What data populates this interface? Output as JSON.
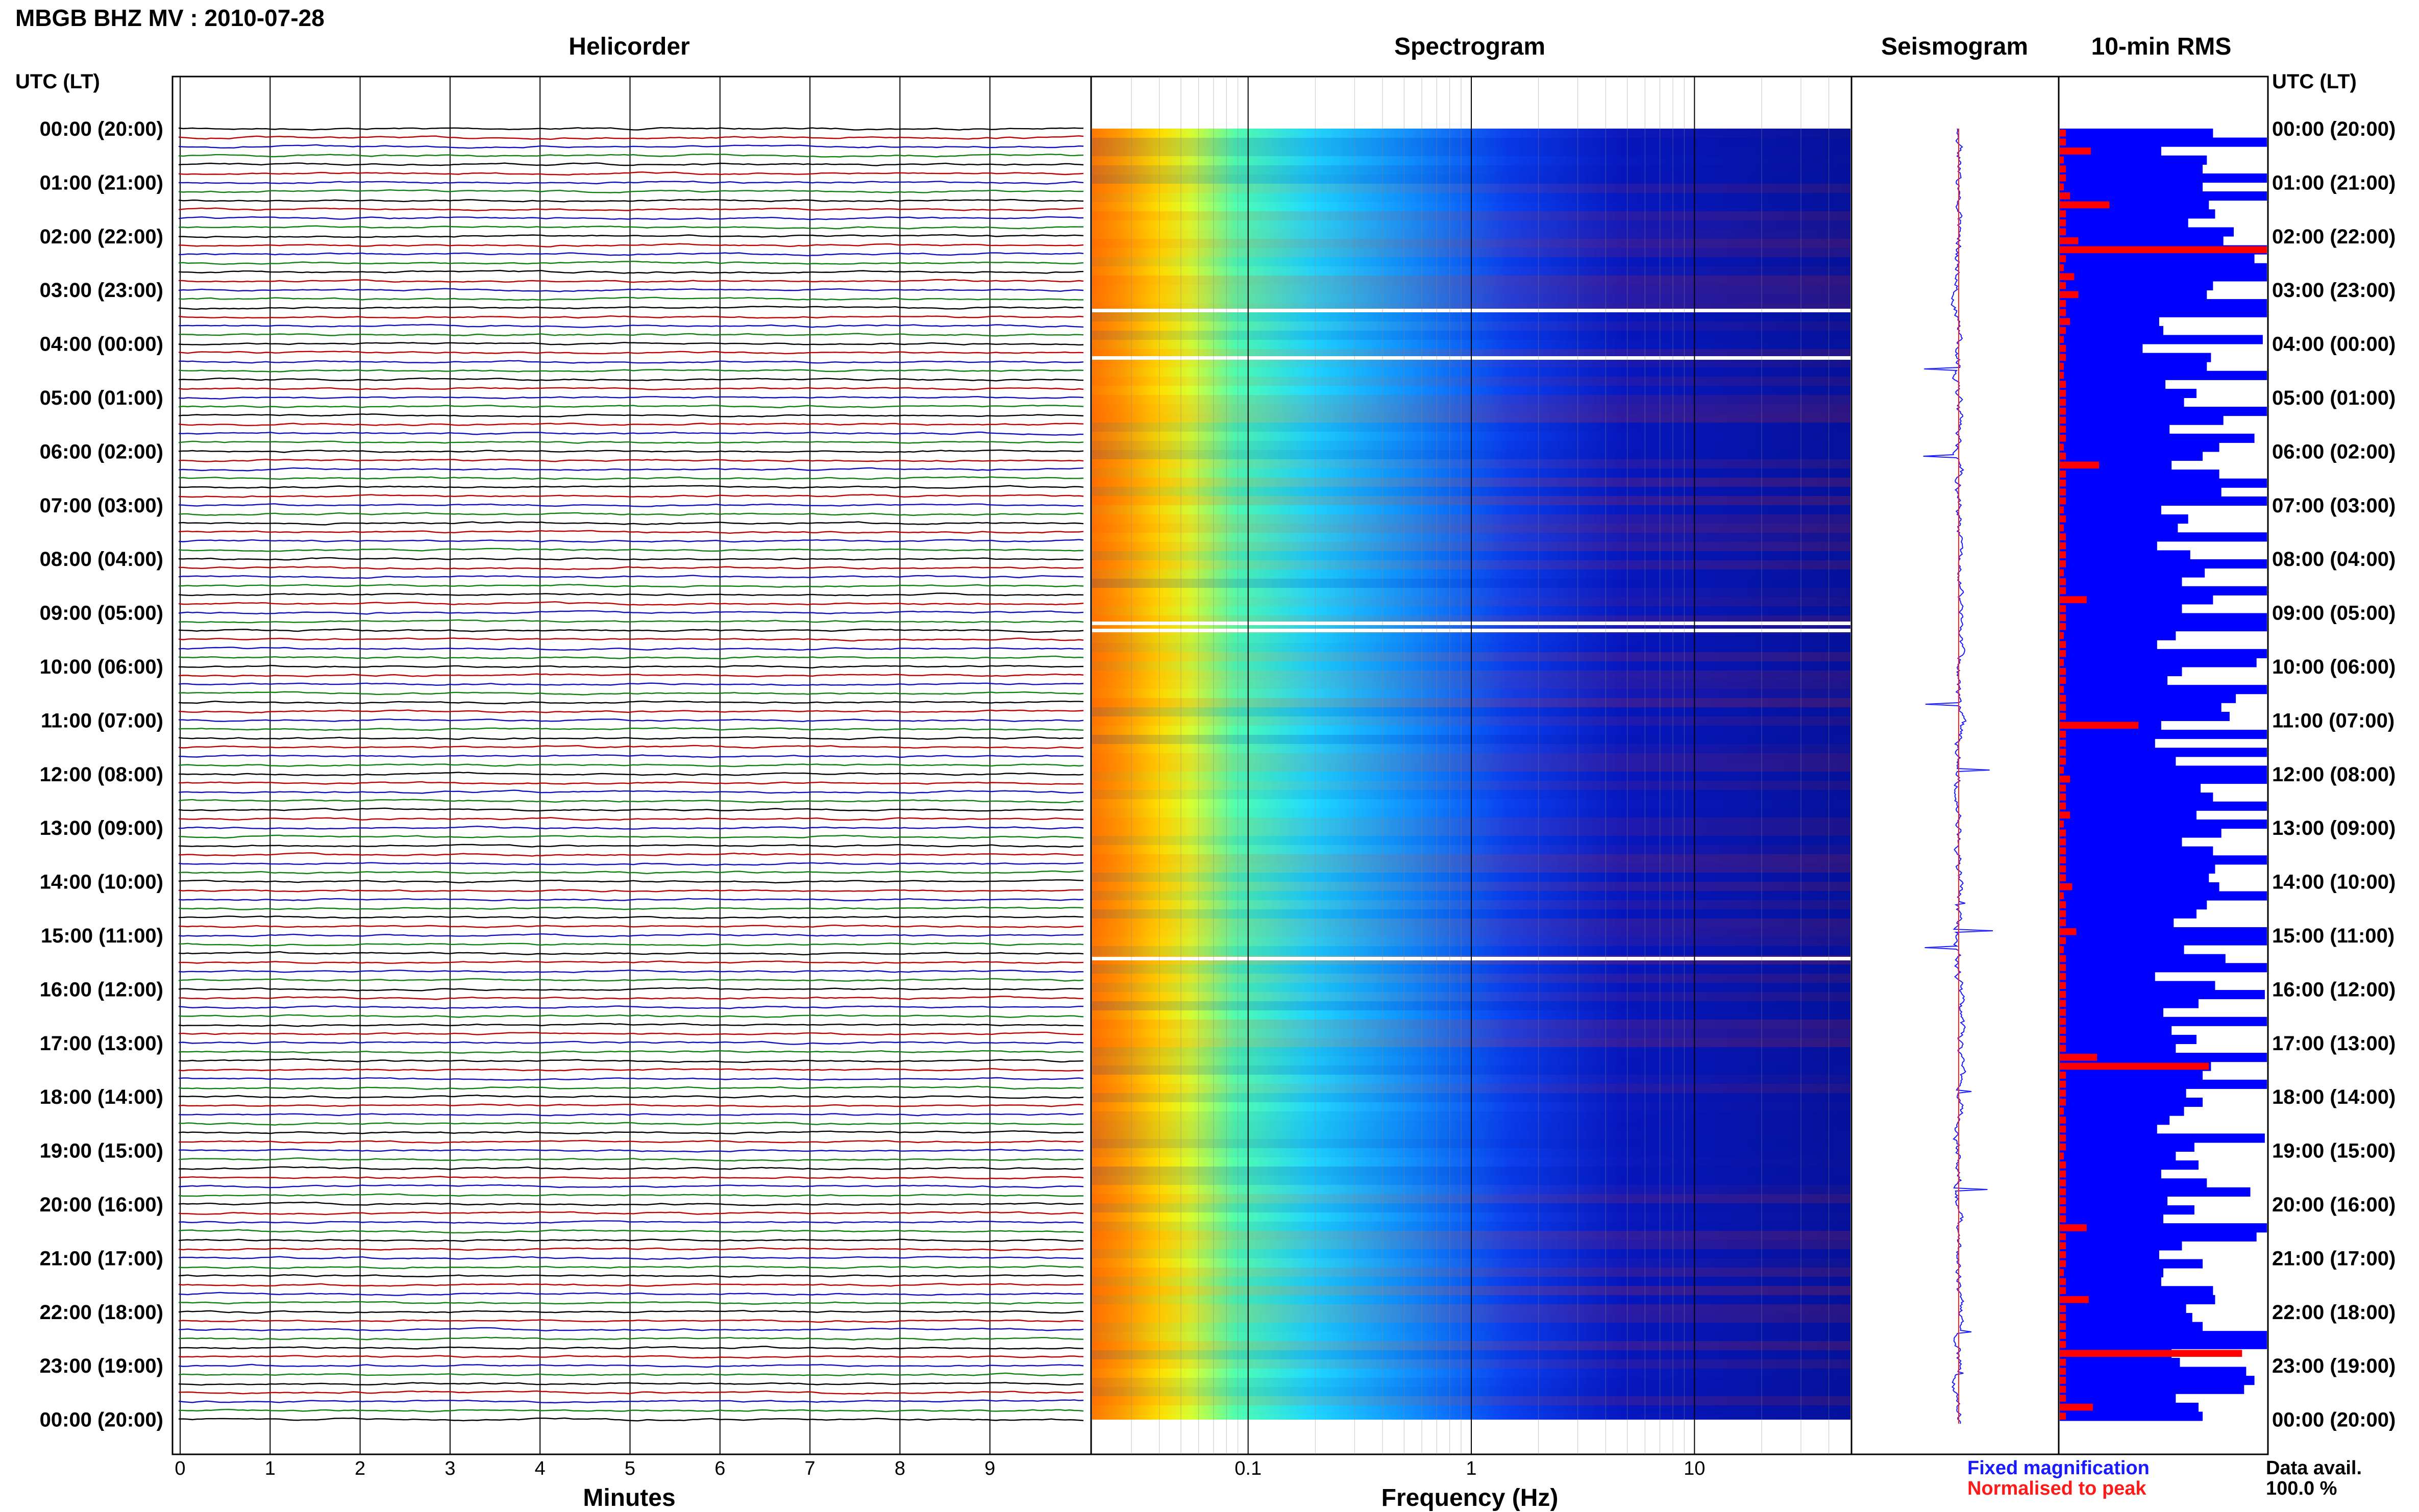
{
  "header": {
    "title": "MBGB BHZ MV : 2010-07-28",
    "utc_label_left": "UTC (LT)",
    "utc_label_right": "UTC (LT)"
  },
  "panels": {
    "helicorder": "Helicorder",
    "spectrogram": "Spectrogram",
    "seismogram": "Seismogram",
    "rms": "10-min RMS"
  },
  "time_labels": [
    "00:00 (20:00)",
    "01:00 (21:00)",
    "02:00 (22:00)",
    "03:00 (23:00)",
    "04:00 (00:00)",
    "05:00 (01:00)",
    "06:00 (02:00)",
    "07:00 (03:00)",
    "08:00 (04:00)",
    "09:00 (05:00)",
    "10:00 (06:00)",
    "11:00 (07:00)",
    "12:00 (08:00)",
    "13:00 (09:00)",
    "14:00 (10:00)",
    "15:00 (11:00)",
    "16:00 (12:00)",
    "17:00 (13:00)",
    "18:00 (14:00)",
    "19:00 (15:00)",
    "20:00 (16:00)",
    "21:00 (17:00)",
    "22:00 (18:00)",
    "23:00 (19:00)",
    "00:00 (20:00)"
  ],
  "footer": {
    "legend_fixed": "Fixed magnification",
    "legend_normalised": "Normalised to peak",
    "avail_label": "Data avail.",
    "avail_value": "100.0 %"
  },
  "colors": {
    "trace_cycle": [
      "#000000",
      "#c00000",
      "#1010c0",
      "#108010"
    ],
    "rms_fixed": "#0000ff",
    "rms_normalised": "#ff0000"
  },
  "chart_data": [
    {
      "type": "line",
      "title": "Helicorder",
      "xlabel": "Minutes",
      "x_ticks": [
        "0",
        "1",
        "2",
        "3",
        "4",
        "5",
        "6",
        "7",
        "8",
        "9"
      ],
      "xlim": [
        0,
        10
      ],
      "rows_per_hour": 6,
      "row_count": 144
    },
    {
      "type": "heatmap",
      "title": "Spectrogram",
      "xlabel": "Frequency (Hz)",
      "x_scale": "log",
      "x_ticks": [
        "0.1",
        "1",
        "10"
      ],
      "xlim": [
        0.02,
        50
      ],
      "colormap": "jet (blue low, red high)"
    },
    {
      "type": "line",
      "title": "Seismogram"
    },
    {
      "type": "bar",
      "title": "10-min RMS",
      "orientation": "horizontal",
      "series": [
        {
          "name": "Fixed magnification",
          "values": [
            0.74,
            1.0,
            0.49,
            0.71,
            0.69,
            1.0,
            0.69,
            1.0,
            0.72,
            0.75,
            0.62,
            0.84,
            0.79,
            1.0,
            0.94,
            1.0,
            1.0,
            0.74,
            0.71,
            1.0,
            1.0,
            0.48,
            0.5,
            0.98,
            0.4,
            0.73,
            0.71,
            1.0,
            0.51,
            0.66,
            0.6,
            1.0,
            0.79,
            0.53,
            0.94,
            0.77,
            0.69,
            0.54,
            0.77,
            1.0,
            0.78,
            1.0,
            0.49,
            0.62,
            0.57,
            1.0,
            0.47,
            0.63,
            1.0,
            0.7,
            0.59,
            1.0,
            0.74,
            0.59,
            1.0,
            1.0,
            0.56,
            0.47,
            1.0,
            0.95,
            0.59,
            0.52,
            1.0,
            0.85,
            0.78,
            0.82,
            0.49,
            1.0,
            0.46,
            1.0,
            0.56,
            1.0,
            1.0,
            0.68,
            0.74,
            1.0,
            0.66,
            1.0,
            0.78,
            0.59,
            0.74,
            1.0,
            0.75,
            0.72,
            0.77,
            1.0,
            0.71,
            0.66,
            0.55,
            1.0,
            1.0,
            0.6,
            0.8,
            1.0,
            0.46,
            0.75,
            0.99,
            0.67,
            0.5,
            1.0,
            0.54,
            0.66,
            0.56,
            1.0,
            0.73,
            0.69,
            1.0,
            0.61,
            0.69,
            0.6,
            0.53,
            0.47,
            0.99,
            0.65,
            0.56,
            0.67,
            0.49,
            0.71,
            0.92,
            0.52,
            0.65,
            0.5,
            1.0,
            0.95,
            0.59,
            0.48,
            0.69,
            0.5,
            0.49,
            0.74,
            0.75,
            0.61,
            0.64,
            0.69,
            1.0,
            1.0,
            0.54,
            0.58,
            0.9,
            0.94,
            0.89,
            0.56,
            0.67,
            0.69
          ]
        },
        {
          "name": "Normalised to peak",
          "values": [
            0.03,
            0.03,
            0.15,
            0.02,
            0.03,
            0.03,
            0.02,
            0.05,
            0.24,
            0.03,
            0.03,
            0.03,
            0.09,
            1.0,
            0.03,
            0.02,
            0.07,
            0.03,
            0.09,
            0.03,
            0.03,
            0.05,
            0.03,
            0.02,
            0.03,
            0.03,
            0.02,
            0.02,
            0.03,
            0.03,
            0.03,
            0.03,
            0.03,
            0.03,
            0.03,
            0.02,
            0.03,
            0.19,
            0.03,
            0.03,
            0.03,
            0.03,
            0.02,
            0.03,
            0.02,
            0.03,
            0.03,
            0.03,
            0.03,
            0.02,
            0.03,
            0.03,
            0.13,
            0.03,
            0.03,
            0.03,
            0.02,
            0.03,
            0.03,
            0.02,
            0.03,
            0.03,
            0.02,
            0.03,
            0.03,
            0.03,
            0.38,
            0.03,
            0.03,
            0.03,
            0.03,
            0.02,
            0.05,
            0.03,
            0.03,
            0.03,
            0.05,
            0.02,
            0.03,
            0.03,
            0.03,
            0.03,
            0.03,
            0.03,
            0.06,
            0.02,
            0.03,
            0.03,
            0.03,
            0.08,
            0.03,
            0.02,
            0.03,
            0.03,
            0.03,
            0.03,
            0.03,
            0.03,
            0.03,
            0.03,
            0.03,
            0.03,
            0.03,
            0.18,
            0.72,
            0.03,
            0.03,
            0.03,
            0.03,
            0.02,
            0.03,
            0.03,
            0.03,
            0.03,
            0.02,
            0.03,
            0.03,
            0.03,
            0.03,
            0.03,
            0.03,
            0.03,
            0.13,
            0.03,
            0.03,
            0.03,
            0.03,
            0.02,
            0.03,
            0.03,
            0.14,
            0.03,
            0.03,
            0.03,
            0.03,
            0.03,
            0.88,
            0.03,
            0.03,
            0.03,
            0.03,
            0.03,
            0.16,
            0.03
          ]
        }
      ]
    }
  ]
}
